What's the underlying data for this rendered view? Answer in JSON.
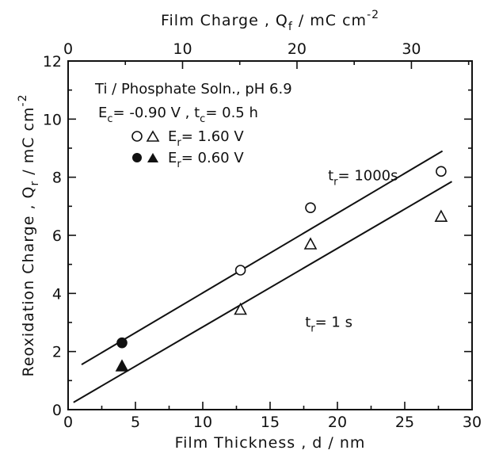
{
  "chart_data": {
    "type": "scatter",
    "xlabel": "Film Thickness , d / nm",
    "x2label": "Film Charge , Q",
    "x2label_sub": "f",
    "x2label_unit": " / mC cm",
    "x2label_exp": "-2",
    "ylabel": "Reoxidation Charge , Q",
    "ylabel_sub": "r",
    "ylabel_unit": " / mC cm",
    "ylabel_exp": "-2",
    "xlim": [
      0,
      30
    ],
    "ylim": [
      0,
      12
    ],
    "x2lim": [
      0,
      35.3
    ],
    "x_ticks": [
      0,
      5,
      10,
      15,
      20,
      25,
      30
    ],
    "y_ticks": [
      0,
      2,
      4,
      6,
      8,
      10,
      12
    ],
    "x2_ticks": [
      0,
      10,
      20,
      30
    ],
    "conditions": {
      "line1": "Ti / Phosphate Soln., pH 6.9",
      "line2_a": "E",
      "line2_a_sub": "c",
      "line2_b": "= -0.90 V ,  t",
      "line2_b_sub": "c",
      "line2_c": "= 0.5 h"
    },
    "legend": [
      {
        "markers": [
          "open-circle",
          "open-triangle"
        ],
        "label": "E",
        "label_sub": "r",
        "label_value": "= 1.60 V"
      },
      {
        "markers": [
          "filled-circle",
          "filled-triangle"
        ],
        "label": "E",
        "label_sub": "r",
        "label_value": "= 0.60 V"
      }
    ],
    "series": [
      {
        "marker": "open-circle",
        "points": [
          [
            12.8,
            4.8
          ],
          [
            18.0,
            6.95
          ],
          [
            27.7,
            8.2
          ]
        ]
      },
      {
        "marker": "open-triangle",
        "points": [
          [
            12.8,
            3.45
          ],
          [
            18.0,
            5.7
          ],
          [
            27.7,
            6.65
          ]
        ]
      },
      {
        "marker": "filled-circle",
        "points": [
          [
            4.0,
            2.3
          ]
        ]
      },
      {
        "marker": "filled-triangle",
        "points": [
          [
            4.0,
            1.5
          ]
        ]
      }
    ],
    "fit_lines": [
      {
        "label": "t",
        "label_sub": "r",
        "label_value": "= 1000s",
        "start": [
          1.0,
          1.55
        ],
        "end": [
          27.8,
          8.9
        ],
        "label_at": [
          19.3,
          7.9
        ]
      },
      {
        "label": "t",
        "label_sub": "r",
        "label_value": "= 1 s",
        "start": [
          0.4,
          0.25
        ],
        "end": [
          28.5,
          7.85
        ],
        "label_at": [
          17.6,
          2.85
        ]
      }
    ]
  }
}
